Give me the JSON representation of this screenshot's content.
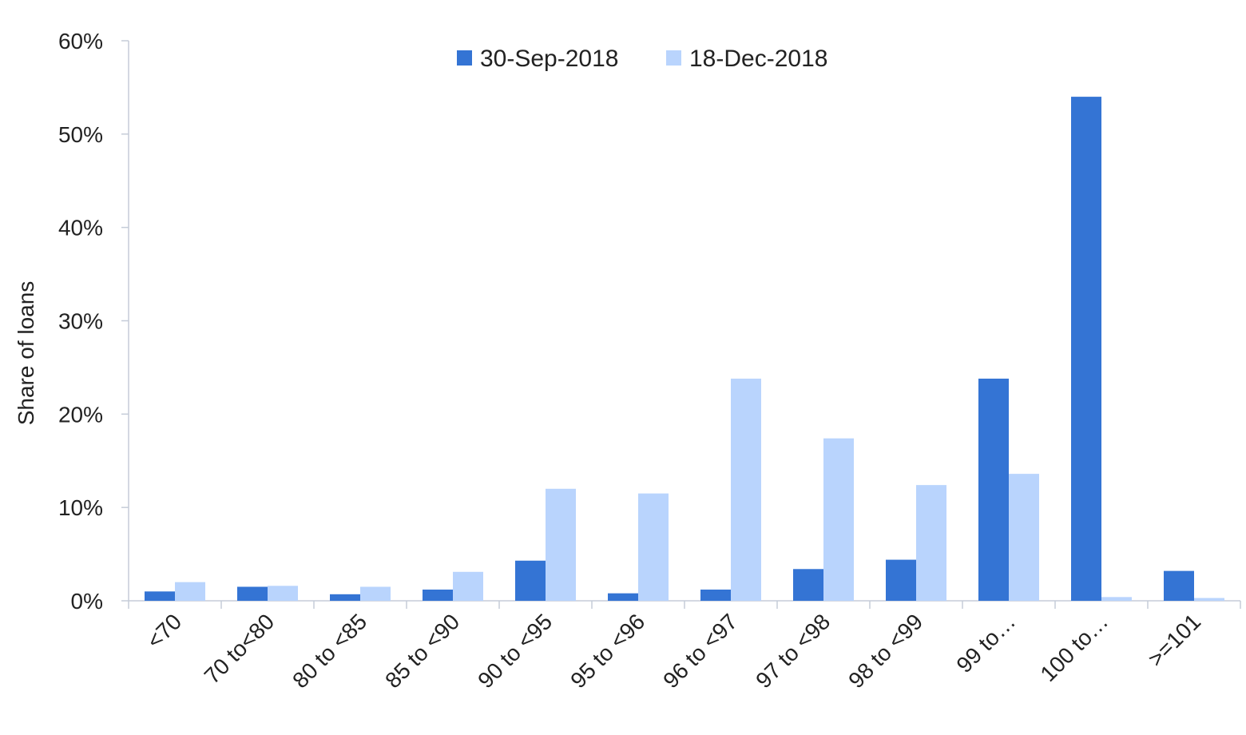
{
  "chart_data": {
    "type": "bar",
    "title": "",
    "xlabel": "",
    "ylabel": "Share of loans",
    "y_unit": "%",
    "ylim": [
      0,
      60
    ],
    "yticks": [
      0,
      10,
      20,
      30,
      40,
      50,
      60
    ],
    "ytick_labels": [
      "0%",
      "10%",
      "20%",
      "30%",
      "40%",
      "50%",
      "60%"
    ],
    "grid": false,
    "legend_position": "top-center",
    "categories": [
      "<70",
      "70 to<80",
      "80 to <85",
      "85 to <90",
      "90 to <95",
      "95 to <96",
      "96 to <97",
      "97 to <98",
      "98 to <99",
      "99 to…",
      "100 to…",
      ">=101"
    ],
    "series": [
      {
        "name": "30-Sep-2018",
        "color": "#3474d4",
        "values": [
          1.0,
          1.5,
          0.7,
          1.2,
          4.3,
          0.8,
          1.2,
          3.4,
          4.4,
          23.8,
          54.0,
          3.2
        ]
      },
      {
        "name": "18-Dec-2018",
        "color": "#b9d4fd",
        "values": [
          2.0,
          1.6,
          1.5,
          3.1,
          12.0,
          11.5,
          23.8,
          17.4,
          12.4,
          13.6,
          0.4,
          0.3
        ]
      }
    ],
    "axis_color": "#c5ccd8"
  }
}
